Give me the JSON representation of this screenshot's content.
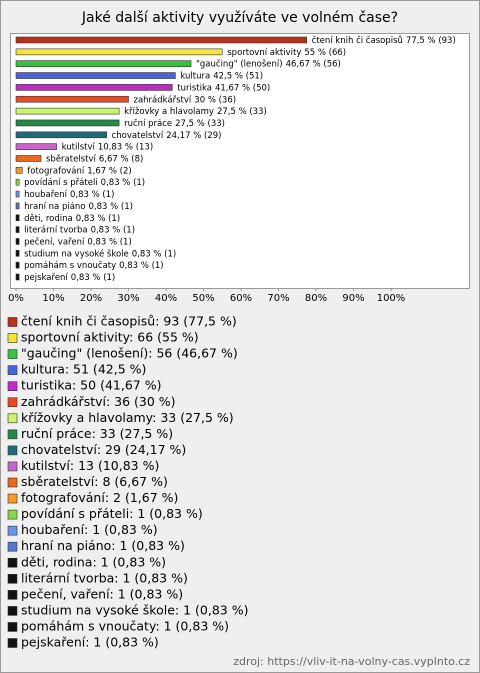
{
  "chart_data": {
    "type": "bar",
    "orientation": "horizontal",
    "title": "Jaké další aktivity využíváte ve volném čase?",
    "categories": [
      "čtení knih či časopisů",
      "sportovní aktivity",
      "\"gaučing\" (lenošení)",
      "kultura",
      "turistika",
      "zahrádkářství",
      "křížovky a hlavolamy",
      "ruční práce",
      "chovatelství",
      "kutilství",
      "sběratelství",
      "fotografování",
      "povídání s přáteli",
      "houbaření",
      "hraní na piáno",
      "děti, rodina",
      "literární tvorba",
      "pečení, vaření",
      "studium na vysoké škole",
      "pomáhám s vnoučaty",
      "pejskaření"
    ],
    "values": [
      77.5,
      55,
      46.67,
      42.5,
      41.67,
      30,
      27.5,
      27.5,
      24.17,
      10.83,
      6.67,
      1.67,
      0.83,
      0.83,
      0.83,
      0.83,
      0.83,
      0.83,
      0.83,
      0.83,
      0.83
    ],
    "value_labels": [
      "77,5 % (93)",
      "55 % (66)",
      "46,67 % (56)",
      "42,5 % (51)",
      "41,67 % (50)",
      "30 % (36)",
      "27,5 % (33)",
      "27,5 % (33)",
      "24,17 % (29)",
      "10,83 % (13)",
      "6,67 % (8)",
      "1,67 % (2)",
      "0,83 % (1)",
      "0,83 % (1)",
      "0,83 % (1)",
      "0,83 % (1)",
      "0,83 % (1)",
      "0,83 % (1)",
      "0,83 % (1)",
      "0,83 % (1)",
      "0,83 % (1)"
    ],
    "colors": [
      "#b8311c",
      "#f5e23a",
      "#38c43a",
      "#4a62d8",
      "#c02ac8",
      "#e8491e",
      "#c8f56a",
      "#23884a",
      "#236a78",
      "#c866c8",
      "#e86a22",
      "#f59a2a",
      "#86d84a",
      "#6a96e8",
      "#5a78c8",
      "#111111",
      "#111111",
      "#111111",
      "#111111",
      "#111111",
      "#111111"
    ],
    "legend_labels": [
      "čtení knih či časopisů: 93 (77,5 %)",
      "sportovní aktivity: 66 (55 %)",
      "\"gaučing\" (lenošení): 56 (46,67 %)",
      "kultura: 51 (42,5 %)",
      "turistika: 50 (41,67 %)",
      "zahrádkářství: 36 (30 %)",
      "křížovky a hlavolamy: 33 (27,5 %)",
      "ruční práce: 33 (27,5 %)",
      "chovatelství: 29 (24,17 %)",
      "kutilství: 13 (10,83 %)",
      "sběratelství: 8 (6,67 %)",
      "fotografování: 2 (1,67 %)",
      "povídání s přáteli: 1 (0,83 %)",
      "houbaření: 1 (0,83 %)",
      "hraní na piáno: 1 (0,83 %)",
      "děti, rodina: 1 (0,83 %)",
      "literární tvorba: 1 (0,83 %)",
      "pečení, vaření: 1 (0,83 %)",
      "studium na vysoké škole: 1 (0,83 %)",
      "pomáhám s vnoučaty: 1 (0,83 %)",
      "pejskaření: 1 (0,83 %)"
    ],
    "xlim": [
      0,
      100
    ],
    "xticks": [
      {
        "value": 0,
        "label": "0%"
      },
      {
        "value": 10,
        "label": "10%"
      },
      {
        "value": 20,
        "label": "20%"
      },
      {
        "value": 30,
        "label": "30%"
      },
      {
        "value": 40,
        "label": "40%"
      },
      {
        "value": 50,
        "label": "50%"
      },
      {
        "value": 60,
        "label": "60%"
      },
      {
        "value": 70,
        "label": "70%"
      },
      {
        "value": 80,
        "label": "80%"
      },
      {
        "value": 90,
        "label": "90%"
      },
      {
        "value": 100,
        "label": "100%"
      }
    ],
    "source": "zdroj: https://vliv-it-na-volny-cas.vyplnto.cz"
  }
}
